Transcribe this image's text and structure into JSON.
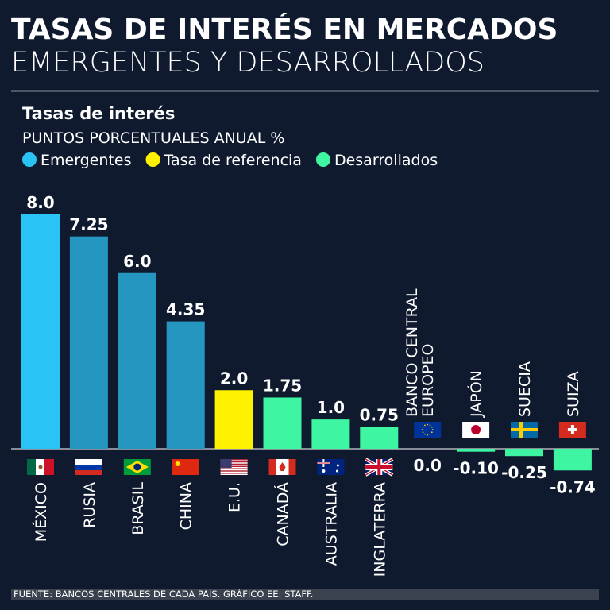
{
  "chart_data": {
    "type": "bar",
    "title": "TASAS DE INTERÉS EN MERCADOS",
    "subtitle": "EMERGENTES Y DESARROLLADOS",
    "chart_title": "Tasas de interés",
    "y_label": "PUNTOS PORCENTUALES ANUAL %",
    "legend": [
      {
        "name": "Emergentes",
        "color": "#29c4f5"
      },
      {
        "name": "Tasa de referencia",
        "color": "#fff200"
      },
      {
        "name": "Desarrollados",
        "color": "#3ef5a2"
      }
    ],
    "categories": [
      "MÉXICO",
      "RUSIA",
      "BRASIL",
      "CHINA",
      "E.U.",
      "CANADÁ",
      "AUSTRALIA",
      "INGLATERRA",
      "BANCO CENTRAL EUROPEO",
      "JAPÓN",
      "SUECIA",
      "SUIZA"
    ],
    "values": [
      8.0,
      7.25,
      6.0,
      4.35,
      2.0,
      1.75,
      1.0,
      0.75,
      0.0,
      -0.1,
      -0.25,
      -0.74
    ],
    "value_labels": [
      "8.0",
      "7.25",
      "6.0",
      "4.35",
      "2.0",
      "1.75",
      "1.0",
      "0.75",
      "0.0",
      "-0.10",
      "-0.25",
      "-0.74"
    ],
    "colors": [
      "#29c4f5",
      "#2596c0",
      "#2596c0",
      "#2596c0",
      "#fff200",
      "#3ef5a2",
      "#3ef5a2",
      "#3ef5a2",
      "#3ef5a2",
      "#3ef5a2",
      "#3ef5a2",
      "#3ef5a2"
    ],
    "source": "FUENTE: BANCOS CENTRALES DE CADA PAÍS. GRÁFICO EE: STAFF."
  }
}
